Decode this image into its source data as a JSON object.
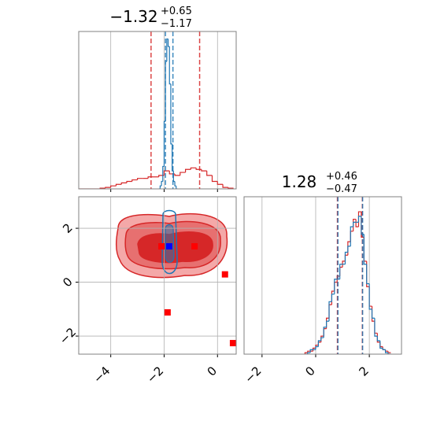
{
  "chart_data": [
    {
      "type": "step",
      "title": "−1.32",
      "title_plus": "+0.65",
      "title_minus": "−1.17",
      "xlim": [
        -5.2,
        0.7
      ],
      "xticks": [
        -4,
        -2,
        0
      ],
      "ylim": [
        0,
        1.05
      ],
      "grid": true,
      "series": [
        {
          "name": "red",
          "color": "#d62728",
          "quantiles": [
            -2.49,
            -0.67
          ],
          "bins": [
            -5.2,
            -5.0,
            -4.8,
            -4.6,
            -4.4,
            -4.2,
            -4.0,
            -3.8,
            -3.6,
            -3.4,
            -3.2,
            -3.0,
            -2.8,
            -2.6,
            -2.4,
            -2.2,
            -2.0,
            -1.8,
            -1.6,
            -1.4,
            -1.2,
            -1.0,
            -0.8,
            -0.6,
            -0.4,
            -0.2,
            0.0,
            0.2,
            0.4,
            0.6
          ],
          "values": [
            0,
            0,
            0,
            0,
            0.005,
            0.01,
            0.02,
            0.03,
            0.04,
            0.05,
            0.06,
            0.07,
            0.07,
            0.08,
            0.08,
            0.09,
            0.12,
            0.1,
            0.09,
            0.11,
            0.13,
            0.14,
            0.13,
            0.12,
            0.09,
            0.05,
            0.03,
            0.01,
            0.005
          ]
        },
        {
          "name": "blue",
          "color": "#1f77b4",
          "quantiles": [
            -1.95,
            -1.67
          ],
          "bins": [
            -2.2,
            -2.15,
            -2.1,
            -2.05,
            -2.0,
            -1.95,
            -1.9,
            -1.85,
            -1.8,
            -1.75,
            -1.7,
            -1.65,
            -1.6,
            -1.55,
            -1.5
          ],
          "values": [
            0,
            0.02,
            0.05,
            0.15,
            0.45,
            0.85,
            1.0,
            0.95,
            0.7,
            0.3,
            0.12,
            0.05,
            0.02,
            0
          ]
        }
      ]
    },
    {
      "type": "scatter",
      "xlim": [
        -5.2,
        0.7
      ],
      "xticks": [
        {
          "value": -4,
          "label": "−4"
        },
        {
          "value": -2,
          "label": "−2"
        },
        {
          "value": 0,
          "label": "0"
        }
      ],
      "ylim": [
        -2.67,
        3.17
      ],
      "yticks": [
        {
          "value": -2,
          "label": "−2"
        },
        {
          "value": 0,
          "label": "0"
        },
        {
          "value": 2,
          "label": "2"
        }
      ],
      "grid": true,
      "series": [
        {
          "name": "red",
          "color": "#ff0000",
          "x": [
            -2.1,
            -0.86,
            0.28,
            -1.87,
            0.58
          ],
          "values": [
            1.33,
            1.33,
            0.29,
            -1.12,
            -2.26
          ]
        },
        {
          "name": "blue",
          "color": "#0000ff",
          "x": [
            -1.81
          ],
          "values": [
            1.33
          ]
        }
      ]
    },
    {
      "type": "step",
      "title": "1.28",
      "title_plus": "+0.46",
      "title_minus": "−0.47",
      "xlim": [
        -2.67,
        3.2
      ],
      "xticks": [
        {
          "value": -2,
          "label": "−2"
        },
        {
          "value": 0,
          "label": "0"
        },
        {
          "value": 2,
          "label": "2"
        }
      ],
      "ylim": [
        0,
        1.05
      ],
      "grid": true,
      "series": [
        {
          "name": "red",
          "color": "#d62728",
          "quantiles": [
            0.81,
            1.74
          ],
          "bins": [
            -0.4,
            -0.3,
            -0.2,
            -0.1,
            0.0,
            0.1,
            0.2,
            0.3,
            0.4,
            0.5,
            0.6,
            0.7,
            0.8,
            0.9,
            1.0,
            1.1,
            1.2,
            1.3,
            1.4,
            1.5,
            1.6,
            1.7,
            1.8,
            1.9,
            2.0,
            2.1,
            2.2,
            2.3,
            2.4,
            2.5,
            2.6,
            2.7,
            2.8
          ],
          "values": [
            0.01,
            0.02,
            0.02,
            0.04,
            0.06,
            0.08,
            0.12,
            0.17,
            0.24,
            0.33,
            0.42,
            0.48,
            0.52,
            0.58,
            0.62,
            0.66,
            0.75,
            0.82,
            0.9,
            0.85,
            0.95,
            0.78,
            0.62,
            0.45,
            0.32,
            0.22,
            0.14,
            0.08,
            0.05,
            0.03,
            0.02,
            0.01
          ]
        },
        {
          "name": "blue",
          "color": "#1f77b4",
          "quantiles": [
            0.83,
            1.75
          ],
          "bins": [
            -0.4,
            -0.3,
            -0.2,
            -0.1,
            0.0,
            0.1,
            0.2,
            0.3,
            0.4,
            0.5,
            0.6,
            0.7,
            0.8,
            0.9,
            1.0,
            1.1,
            1.2,
            1.3,
            1.4,
            1.5,
            1.6,
            1.7,
            1.8,
            1.9,
            2.0,
            2.1,
            2.2,
            2.3,
            2.4,
            2.5,
            2.6,
            2.7,
            2.8
          ],
          "values": [
            0.0,
            0.01,
            0.03,
            0.03,
            0.05,
            0.09,
            0.11,
            0.18,
            0.22,
            0.35,
            0.4,
            0.5,
            0.5,
            0.6,
            0.6,
            0.68,
            0.72,
            0.85,
            0.88,
            0.88,
            0.92,
            0.8,
            0.6,
            0.47,
            0.3,
            0.24,
            0.12,
            0.09,
            0.04,
            0.03,
            0.01,
            0.0
          ]
        }
      ]
    }
  ]
}
